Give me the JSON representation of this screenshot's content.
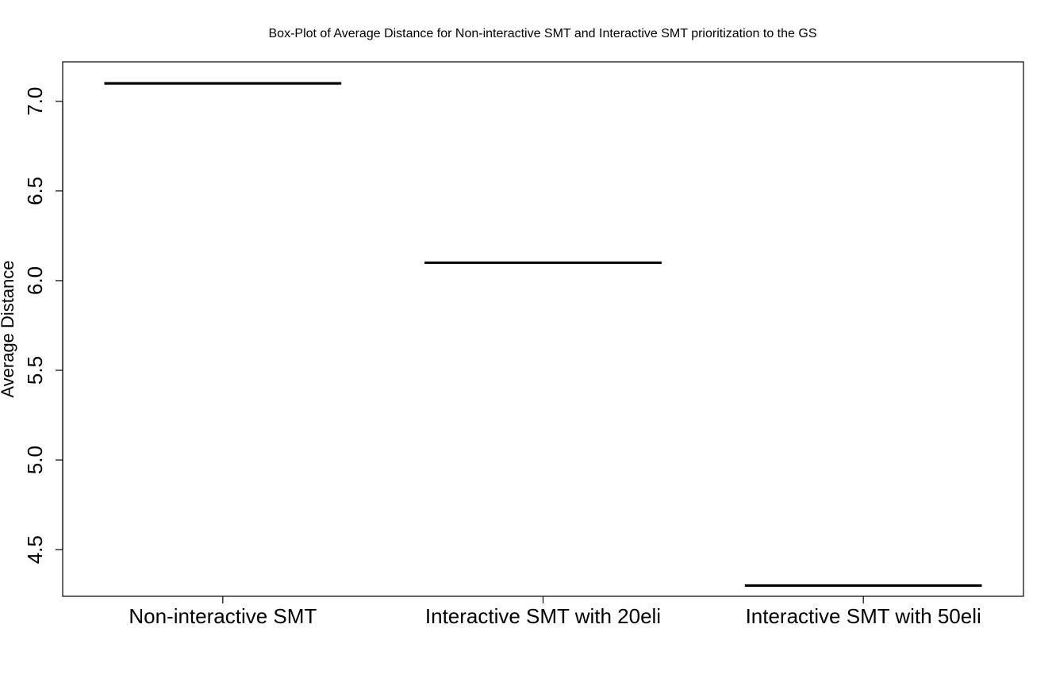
{
  "chart_data": {
    "type": "box",
    "title": "Box-Plot of Average Distance for Non-interactive SMT and Interactive SMT prioritization to the GS",
    "xlabel": "",
    "ylabel": "Average Distance",
    "categories": [
      "Non-interactive SMT",
      "Interactive SMT with 20eli",
      "Interactive SMT with 50eli"
    ],
    "values": [
      7.1,
      6.1,
      4.3
    ],
    "yticks": [
      "4.5",
      "5.0",
      "5.5",
      "6.0",
      "6.5",
      "7.0"
    ],
    "ylim": [
      4.24,
      7.22
    ],
    "grid": false,
    "legend": "none",
    "colors": {
      "line": "#000000",
      "background": "#ffffff"
    }
  }
}
